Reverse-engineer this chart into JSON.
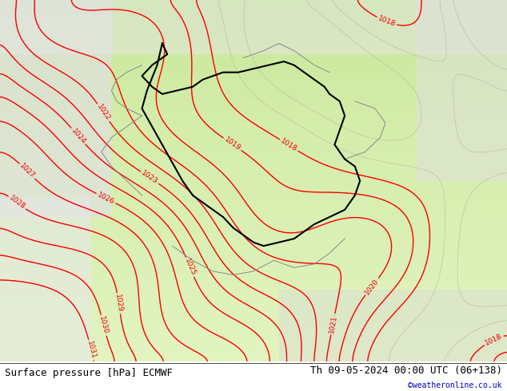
{
  "title_left": "Surface pressure [hPa] ECMWF",
  "title_right": "Th 09-05-2024 00:00 UTC (06+138)",
  "copyright": "©weatheronline.co.uk",
  "bg_color_land": "#d4edaa",
  "bg_color_sea": "#e8e8e8",
  "bg_color_white": "#f0f0f0",
  "contour_color_red": "#ff0000",
  "contour_color_gray": "#aaaaaa",
  "border_color": "#000000",
  "footer_bg": "#ffffff",
  "footer_text_color": "#000000",
  "copyright_color": "#0000cc",
  "pressure_min": 1016,
  "pressure_max": 1032,
  "contour_interval": 1,
  "font_size_labels": 7,
  "font_size_footer": 9
}
